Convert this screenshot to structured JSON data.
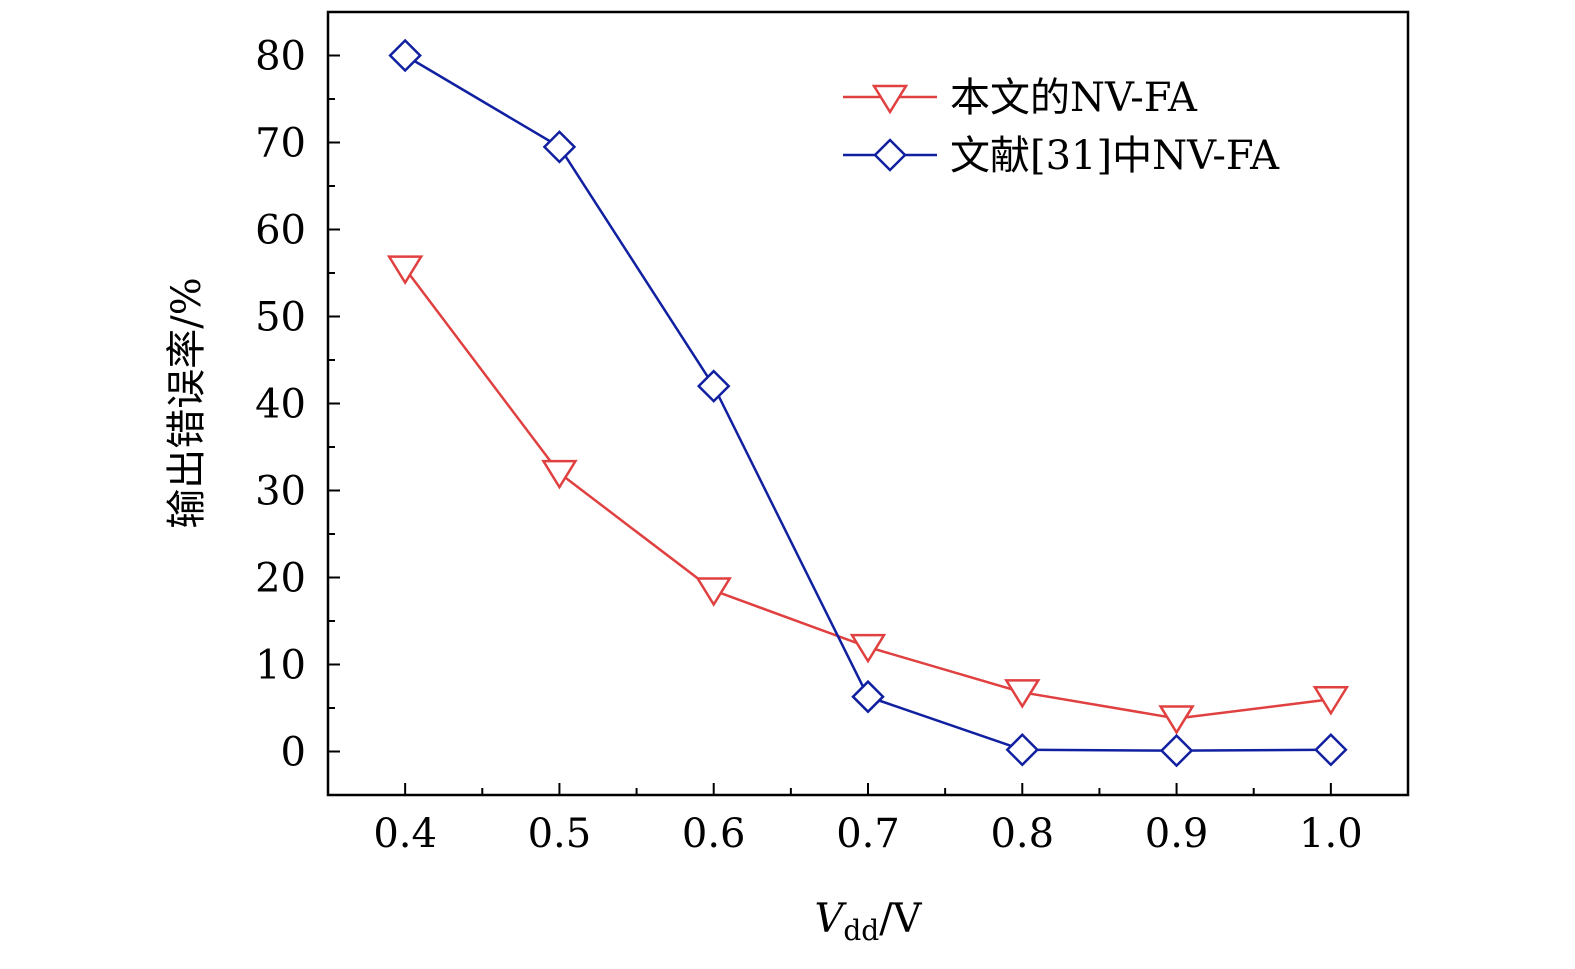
{
  "chart_data": {
    "type": "line",
    "title": "",
    "xlabel": {
      "var": "V",
      "sub": "dd",
      "unit": "/V"
    },
    "ylabel": "输出错误率/%",
    "xlim": [
      0.35,
      1.05
    ],
    "ylim": [
      -5,
      85
    ],
    "x": [
      0.4,
      0.5,
      0.6,
      0.7,
      0.8,
      0.9,
      1.0
    ],
    "xticks": [
      "0.4",
      "0.5",
      "0.6",
      "0.7",
      "0.8",
      "0.9",
      "1.0"
    ],
    "yticks": [
      "0",
      "10",
      "20",
      "30",
      "40",
      "50",
      "60",
      "70",
      "80"
    ],
    "grid": false,
    "legend_position": "top-right",
    "series": [
      {
        "name": "本文的NV-FA",
        "marker": "triangle-down",
        "color": "#e04040",
        "values": [
          55.5,
          32,
          18.5,
          12,
          6.8,
          3.8,
          6
        ]
      },
      {
        "name": "文献[31]中NV-FA",
        "marker": "diamond",
        "color": "#1020a0",
        "values": [
          80,
          69.5,
          42,
          6.3,
          0.2,
          0.1,
          0.2
        ]
      }
    ]
  }
}
